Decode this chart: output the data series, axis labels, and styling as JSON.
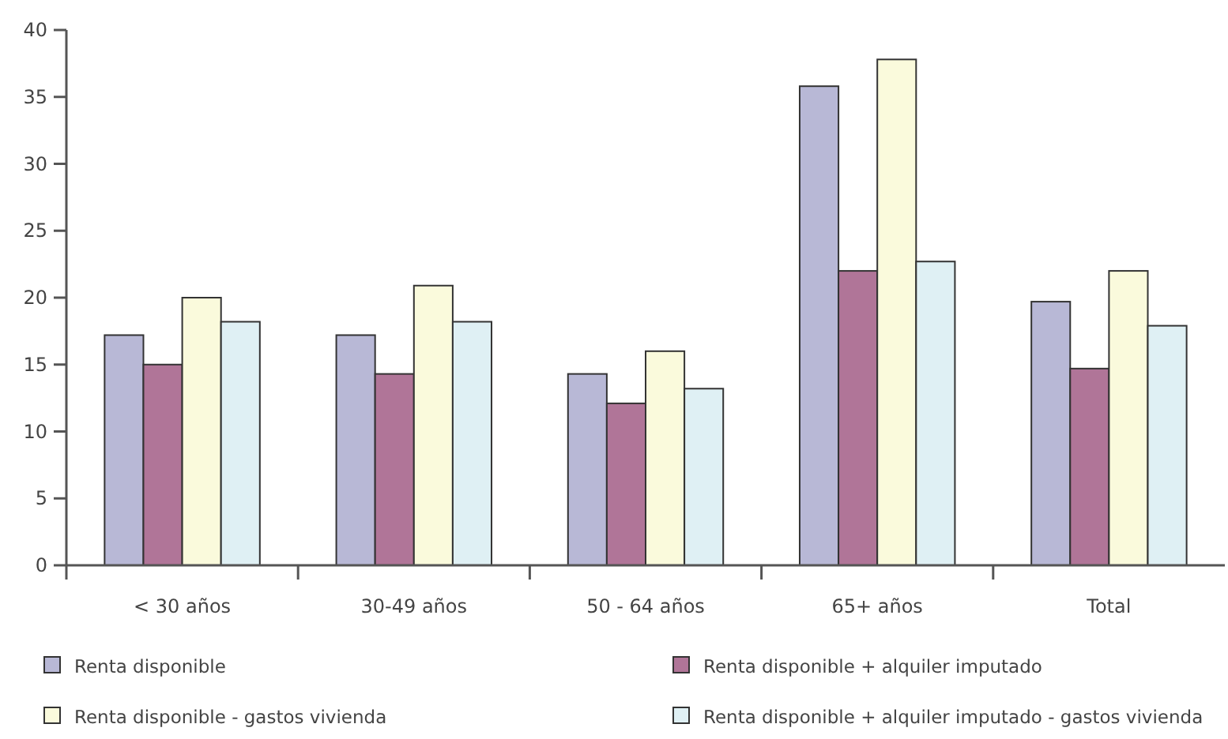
{
  "chart_data": {
    "type": "bar",
    "categories": [
      "< 30 años",
      "30-49 años",
      "50 - 64 años",
      "65+ años",
      "Total"
    ],
    "series": [
      {
        "name": "Renta disponible",
        "color": "#b8b8d6",
        "values": [
          17.2,
          17.2,
          14.3,
          35.8,
          19.7
        ]
      },
      {
        "name": "Renta disponible + alquiler imputado",
        "color": "#b07598",
        "values": [
          15.0,
          14.3,
          12.1,
          22.0,
          14.7
        ]
      },
      {
        "name": "Renta disponible - gastos vivienda",
        "color": "#fafadc",
        "values": [
          20.0,
          20.9,
          16.0,
          37.8,
          22.0
        ]
      },
      {
        "name": "Renta disponible + alquiler imputado - gastos vivienda",
        "color": "#dff0f4",
        "values": [
          18.2,
          18.2,
          13.2,
          22.7,
          17.9
        ]
      }
    ],
    "ylim": [
      0,
      40
    ],
    "yticks": [
      0,
      5,
      10,
      15,
      20,
      25,
      30,
      35,
      40
    ],
    "grid": false,
    "legend": "bottom"
  }
}
